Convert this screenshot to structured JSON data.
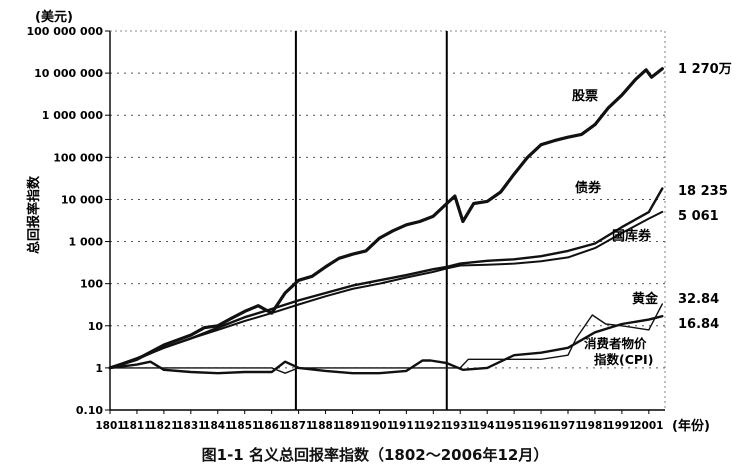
{
  "chart_data": {
    "type": "line",
    "title": "",
    "caption": "图1-1  名义总回报率指数（1802～2006年12月）",
    "unit_label": "(美元)",
    "ylabel": "总回报率指数",
    "xlabel_unit": "(年份)",
    "yscale": "log",
    "ylim": [
      0.1,
      100000000
    ],
    "xlim": [
      1801,
      2007
    ],
    "grid": "dotted-horizontal",
    "x_ticks": [
      "1801",
      "1811",
      "1821",
      "1831",
      "1841",
      "1851",
      "1861",
      "1871",
      "1881",
      "1891",
      "1901",
      "1911",
      "1921",
      "1931",
      "1941",
      "1951",
      "1961",
      "1971",
      "1981",
      "1991",
      "2001"
    ],
    "y_ticks": [
      {
        "value": 100000000,
        "label": "100 000 000"
      },
      {
        "value": 10000000,
        "label": "10 000 000"
      },
      {
        "value": 1000000,
        "label": "1 000 000"
      },
      {
        "value": 100000,
        "label": "100 000"
      },
      {
        "value": 10000,
        "label": "10 000"
      },
      {
        "value": 1000,
        "label": "1 000"
      },
      {
        "value": 100,
        "label": "100"
      },
      {
        "value": 10,
        "label": "10"
      },
      {
        "value": 1,
        "label": "1"
      },
      {
        "value": 0.1,
        "label": "0.10"
      }
    ],
    "vertical_markers": [
      1870,
      1926
    ],
    "series": [
      {
        "name": "股票",
        "end_label": "1 270万",
        "stroke": 3.2,
        "x": [
          1801,
          1811,
          1821,
          1831,
          1836,
          1841,
          1846,
          1851,
          1856,
          1861,
          1866,
          1871,
          1876,
          1881,
          1886,
          1891,
          1896,
          1901,
          1906,
          1911,
          1916,
          1921,
          1926,
          1929,
          1932,
          1936,
          1941,
          1946,
          1951,
          1956,
          1961,
          1966,
          1971,
          1976,
          1981,
          1986,
          1991,
          1996,
          2000,
          2002,
          2006
        ],
        "y": [
          1,
          1.6,
          3.5,
          6,
          9,
          10,
          15,
          22,
          30,
          20,
          60,
          120,
          150,
          250,
          400,
          500,
          600,
          1200,
          1800,
          2500,
          3000,
          4000,
          8000,
          12000,
          3000,
          8000,
          9000,
          15000,
          40000,
          100000,
          200000,
          250000,
          300000,
          350000,
          600000,
          1500000,
          3000000,
          7000000,
          12000000,
          8000000,
          12700000
        ]
      },
      {
        "name": "债券",
        "end_label": "18 235",
        "stroke": 2.4,
        "x": [
          1801,
          1811,
          1821,
          1831,
          1841,
          1851,
          1861,
          1871,
          1881,
          1891,
          1901,
          1911,
          1921,
          1926,
          1931,
          1941,
          1951,
          1961,
          1971,
          1981,
          1991,
          2001,
          2006
        ],
        "y": [
          1,
          1.7,
          3,
          5,
          9,
          16,
          25,
          40,
          60,
          90,
          120,
          160,
          220,
          250,
          300,
          350,
          380,
          450,
          600,
          900,
          2200,
          5000,
          18235
        ]
      },
      {
        "name": "国库券",
        "end_label": "5 061",
        "stroke": 2.0,
        "x": [
          1801,
          1811,
          1821,
          1831,
          1841,
          1851,
          1861,
          1871,
          1881,
          1891,
          1901,
          1911,
          1921,
          1926,
          1931,
          1941,
          1951,
          1961,
          1971,
          1981,
          1991,
          2001,
          2006
        ],
        "y": [
          1,
          1.6,
          3,
          5,
          8,
          13,
          20,
          32,
          50,
          75,
          100,
          140,
          190,
          230,
          270,
          280,
          300,
          340,
          420,
          700,
          1600,
          3500,
          5061
        ]
      },
      {
        "name": "黄金",
        "end_label": "32.84",
        "stroke": 1.4,
        "x": [
          1801,
          1811,
          1821,
          1831,
          1841,
          1851,
          1861,
          1866,
          1871,
          1881,
          1891,
          1901,
          1911,
          1921,
          1926,
          1931,
          1934,
          1941,
          1951,
          1961,
          1971,
          1974,
          1980,
          1985,
          1991,
          2001,
          2006
        ],
        "y": [
          1,
          1,
          1,
          1,
          1,
          1,
          1,
          0.75,
          1,
          1,
          1,
          1,
          1,
          1,
          1,
          1,
          1.6,
          1.6,
          1.6,
          1.6,
          2,
          5,
          18,
          11,
          10,
          8,
          32.84
        ]
      },
      {
        "name": "消费者物价指数(CPI)",
        "end_label": "16.84",
        "stroke": 2.4,
        "x": [
          1801,
          1811,
          1816,
          1821,
          1831,
          1841,
          1851,
          1861,
          1866,
          1871,
          1881,
          1891,
          1901,
          1911,
          1917,
          1920,
          1926,
          1932,
          1941,
          1951,
          1961,
          1971,
          1981,
          1991,
          2001,
          2006
        ],
        "y": [
          1,
          1.2,
          1.4,
          0.9,
          0.8,
          0.75,
          0.8,
          0.8,
          1.4,
          1,
          0.85,
          0.75,
          0.75,
          0.85,
          1.5,
          1.5,
          1.3,
          0.9,
          1,
          2,
          2.3,
          3,
          7,
          11,
          14,
          16.84
        ]
      }
    ]
  }
}
